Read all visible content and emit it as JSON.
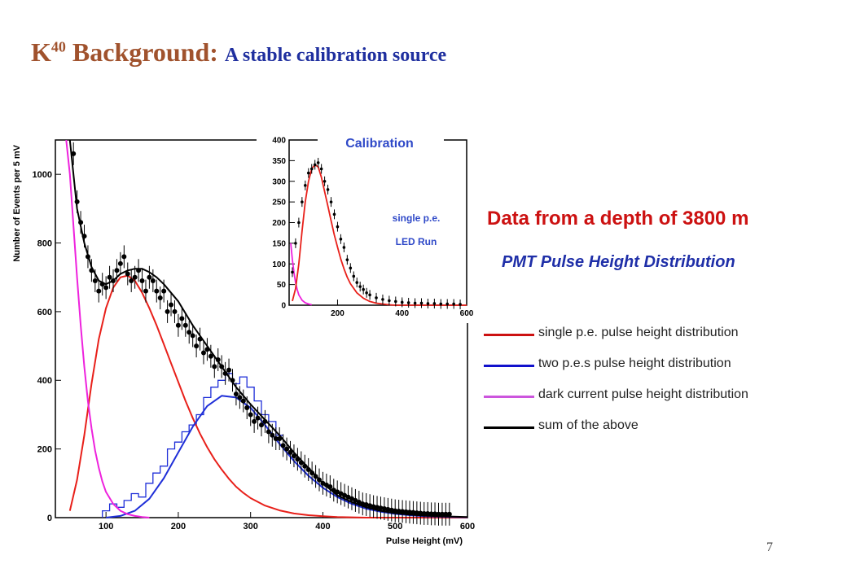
{
  "slide": {
    "title_k": "K",
    "title_sup": "40",
    "title_main": " Background: ",
    "title_sub": "A stable calibration source",
    "headline": "Data from a depth of 3800 m",
    "subheadline": "PMT Pulse Height  Distribution",
    "page_number": "7"
  },
  "legend": {
    "items": [
      {
        "label": "single p.e. pulse height  distribution",
        "color": "#cc1111"
      },
      {
        "label": "two p.e.s pulse height distribution",
        "color": "#1111cc"
      },
      {
        "label": "dark current pulse height distribution",
        "color": "#cc55dd"
      },
      {
        "label": "sum of the above",
        "color": "#000000"
      }
    ]
  },
  "colors": {
    "red": "#e8201a",
    "blue": "#1f2fd8",
    "magenta": "#ee22dd",
    "black": "#000000"
  },
  "chart_data": [
    {
      "type": "scatter",
      "title": "",
      "xlabel": "Pulse Height (mV)",
      "ylabel": "Number of Events per 5 mV",
      "xlim": [
        30,
        600
      ],
      "ylim": [
        0,
        1100
      ],
      "xticks": [
        100,
        200,
        300,
        400,
        500,
        600
      ],
      "yticks": [
        0,
        200,
        400,
        600,
        800,
        1000
      ],
      "grid": false,
      "data_points": {
        "x": [
          55,
          60,
          65,
          70,
          75,
          80,
          85,
          90,
          95,
          100,
          105,
          110,
          115,
          120,
          125,
          130,
          135,
          140,
          145,
          150,
          155,
          160,
          165,
          170,
          175,
          180,
          185,
          190,
          195,
          200,
          205,
          210,
          215,
          220,
          225,
          230,
          235,
          240,
          245,
          250,
          255,
          260,
          265,
          270,
          275,
          280,
          285,
          290,
          295,
          300,
          305,
          310,
          315,
          320,
          325,
          330,
          335,
          340,
          345,
          350,
          355,
          360,
          365,
          370,
          375,
          380,
          385,
          390,
          395,
          400,
          405,
          410,
          415,
          420,
          425,
          430,
          435,
          440,
          445,
          450,
          455,
          460,
          465,
          470,
          475,
          480,
          485,
          490,
          495,
          500,
          505,
          510,
          515,
          520,
          525,
          530,
          535,
          540,
          545,
          550,
          555,
          560,
          565,
          570,
          575
        ],
        "y": [
          1060,
          920,
          860,
          820,
          760,
          720,
          690,
          660,
          680,
          670,
          700,
          690,
          720,
          740,
          760,
          710,
          690,
          700,
          720,
          690,
          660,
          700,
          690,
          660,
          640,
          660,
          600,
          620,
          600,
          560,
          580,
          560,
          540,
          530,
          500,
          520,
          480,
          490,
          470,
          440,
          460,
          440,
          420,
          430,
          400,
          360,
          350,
          340,
          320,
          300,
          280,
          290,
          270,
          280,
          250,
          240,
          230,
          230,
          210,
          200,
          190,
          180,
          170,
          160,
          150,
          140,
          130,
          120,
          110,
          100,
          95,
          90,
          80,
          75,
          70,
          65,
          60,
          55,
          50,
          45,
          40,
          38,
          35,
          32,
          30,
          28,
          26,
          24,
          22,
          20,
          19,
          18,
          17,
          16,
          15,
          14,
          13,
          12,
          12,
          11,
          11,
          10,
          10,
          10,
          10
        ]
      },
      "fits": {
        "single_pe_red": {
          "x": [
            50,
            60,
            70,
            80,
            90,
            100,
            110,
            120,
            130,
            140,
            150,
            160,
            170,
            180,
            190,
            200,
            210,
            220,
            230,
            240,
            250,
            260,
            270,
            280,
            290,
            300,
            320,
            340,
            360,
            380,
            400,
            420,
            440,
            460,
            480,
            500,
            520,
            540,
            560,
            580,
            600
          ],
          "y": [
            20,
            110,
            240,
            390,
            520,
            610,
            670,
            700,
            705,
            690,
            655,
            610,
            560,
            505,
            450,
            395,
            340,
            290,
            245,
            205,
            170,
            140,
            113,
            90,
            72,
            57,
            35,
            21,
            12,
            7,
            4,
            2,
            1,
            0,
            0,
            0,
            0,
            0,
            0,
            0,
            0
          ]
        },
        "two_pe_blue": {
          "x": [
            100,
            120,
            140,
            160,
            180,
            200,
            220,
            240,
            260,
            280,
            300,
            320,
            340,
            360,
            380,
            400,
            420,
            440,
            460,
            480,
            500,
            520,
            540,
            560,
            580,
            600
          ],
          "y": [
            0,
            5,
            20,
            55,
            115,
            190,
            265,
            325,
            355,
            350,
            320,
            270,
            215,
            165,
            122,
            87,
            60,
            40,
            26,
            17,
            11,
            7,
            4,
            3,
            2,
            1
          ]
        },
        "dark_current_magenta": {
          "x": [
            45,
            50,
            55,
            60,
            65,
            70,
            75,
            80,
            85,
            90,
            95,
            100,
            110,
            120,
            130,
            140,
            150,
            160
          ],
          "y": [
            1100,
            1000,
            850,
            700,
            560,
            440,
            340,
            260,
            195,
            145,
            105,
            75,
            40,
            20,
            10,
            5,
            2,
            0
          ]
        },
        "sum_black": {
          "x": [
            50,
            60,
            70,
            80,
            90,
            100,
            110,
            120,
            130,
            140,
            150,
            160,
            170,
            180,
            190,
            200,
            220,
            240,
            260,
            280,
            300,
            320,
            340,
            360,
            380,
            400,
            420,
            440,
            460,
            480,
            500,
            520,
            540,
            560,
            580,
            600
          ],
          "y": [
            1100,
            900,
            800,
            730,
            690,
            680,
            690,
            710,
            720,
            725,
            725,
            715,
            700,
            680,
            655,
            630,
            560,
            500,
            440,
            380,
            330,
            285,
            240,
            190,
            145,
            100,
            65,
            45,
            30,
            20,
            13,
            9,
            6,
            4,
            3,
            2
          ]
        }
      },
      "two_pe_histogram": {
        "x": [
          100,
          110,
          120,
          130,
          140,
          150,
          160,
          170,
          180,
          190,
          200,
          210,
          220,
          230,
          240,
          250,
          260,
          270,
          280,
          290,
          300,
          310,
          320,
          330,
          340
        ],
        "y": [
          20,
          40,
          30,
          50,
          70,
          60,
          100,
          130,
          150,
          200,
          220,
          250,
          270,
          300,
          350,
          380,
          400,
          420,
          390,
          410,
          380,
          340,
          300,
          280,
          240
        ]
      }
    },
    {
      "type": "scatter",
      "title": "Calibration",
      "annotation": [
        "single p.e.",
        "LED Run"
      ],
      "xlim": [
        50,
        600
      ],
      "ylim": [
        0,
        400
      ],
      "xticks": [
        200,
        400,
        600
      ],
      "yticks": [
        0,
        50,
        100,
        150,
        200,
        250,
        300,
        350,
        400
      ],
      "data_points": {
        "x": [
          60,
          70,
          80,
          90,
          100,
          110,
          120,
          130,
          140,
          150,
          160,
          170,
          180,
          190,
          200,
          210,
          220,
          230,
          240,
          250,
          260,
          270,
          280,
          290,
          300,
          320,
          340,
          360,
          380,
          400,
          420,
          440,
          460,
          480,
          500,
          520,
          540,
          560,
          580
        ],
        "y": [
          80,
          150,
          200,
          250,
          290,
          320,
          330,
          340,
          345,
          330,
          300,
          280,
          250,
          220,
          190,
          160,
          140,
          110,
          90,
          70,
          55,
          45,
          38,
          30,
          25,
          18,
          14,
          11,
          9,
          7,
          6,
          5,
          5,
          4,
          4,
          3,
          3,
          3,
          2
        ]
      },
      "fits": {
        "single_pe_red": {
          "x": [
            60,
            70,
            80,
            90,
            100,
            110,
            120,
            130,
            140,
            150,
            160,
            170,
            180,
            190,
            200,
            210,
            220,
            230,
            240,
            260,
            280,
            300,
            320,
            340,
            360,
            380,
            400,
            440,
            480,
            520,
            560,
            600
          ],
          "y": [
            10,
            40,
            100,
            180,
            250,
            300,
            330,
            340,
            335,
            310,
            275,
            240,
            205,
            170,
            140,
            112,
            88,
            68,
            52,
            30,
            17,
            9,
            5,
            3,
            1,
            0,
            0,
            0,
            0,
            0,
            0,
            0
          ]
        },
        "dark_current_magenta": {
          "x": [
            55,
            60,
            65,
            70,
            75,
            80,
            90,
            100,
            110,
            120
          ],
          "y": [
            150,
            110,
            80,
            55,
            38,
            25,
            12,
            6,
            3,
            1
          ]
        }
      }
    }
  ]
}
